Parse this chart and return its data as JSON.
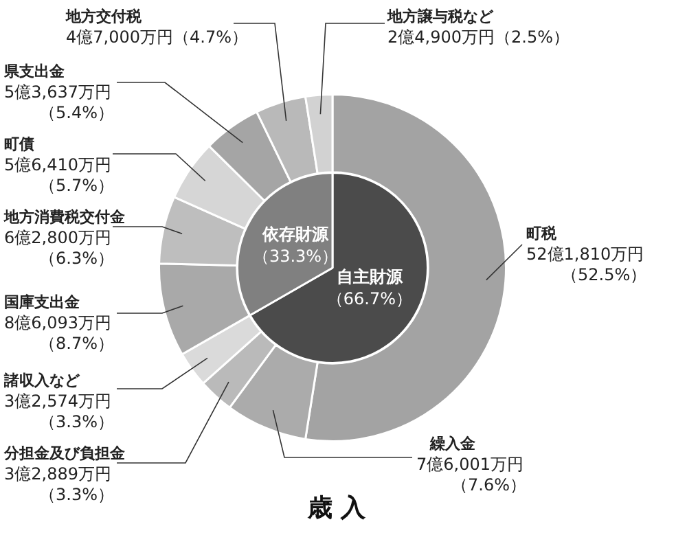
{
  "chart_data": [
    {
      "type": "donut",
      "title": "歳 入",
      "categories": [
        "町税",
        "繰入金",
        "分担金及び負担金",
        "諸収入など",
        "国庫支出金",
        "地方消費税交付金",
        "町債",
        "県支出金",
        "地方交付税",
        "地方譲与税など"
      ],
      "values": [
        52.5,
        7.6,
        3.3,
        3.3,
        8.7,
        6.3,
        5.7,
        5.4,
        4.7,
        2.5
      ],
      "colors": [
        "#a3a3a3",
        "#ababab",
        "#bababa",
        "#dadada",
        "#a9a9a9",
        "#bebebe",
        "#d6d6d6",
        "#a5a5a5",
        "#b9b9b9",
        "#d2d2d2"
      ],
      "value_labels": [
        "52億1,810万円（52.5%）",
        "7億6,001万円（7.6%）",
        "3億2,889万円（3.3%）",
        "3億2,574万円（3.3%）",
        "8億6,093万円（8.7%）",
        "6億2,800万円（6.3%）",
        "5億6,410万円（5.7%）",
        "5億3,637万円（5.4%）",
        "4億7,000万円（4.7%）",
        "2億4,900万円（2.5%）"
      ]
    },
    {
      "type": "pie",
      "categories": [
        "自主財源",
        "依存財源"
      ],
      "values": [
        66.7,
        33.3
      ],
      "colors": [
        "#4b4b4b",
        "#808080"
      ],
      "value_labels": [
        "（66.7%）",
        "（33.3%）"
      ]
    }
  ]
}
